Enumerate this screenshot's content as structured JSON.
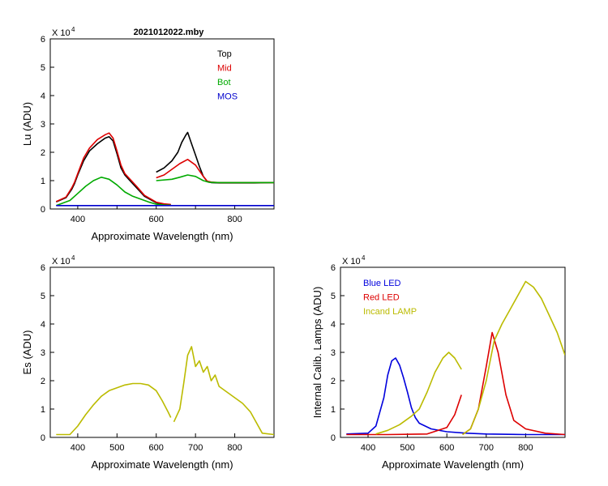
{
  "chart_data": [
    {
      "id": "lu",
      "type": "line",
      "title": "2021012022.mby",
      "xlabel": "Approximate Wavelength (nm)",
      "ylabel": "Lu (ADU)",
      "y_multiplier": "X 10",
      "y_exponent": "4",
      "xlim": [
        330,
        900
      ],
      "ylim": [
        0,
        6
      ],
      "xticks": [
        400,
        500,
        600,
        700,
        800
      ],
      "xtick_labels": [
        "400",
        "",
        "600",
        "",
        "800"
      ],
      "yticks": [
        0,
        1,
        2,
        3,
        4,
        5,
        6
      ],
      "legend_position": "top-right",
      "series": [
        {
          "name": "Top",
          "color": "#000000",
          "segments": [
            {
              "x": [
                345,
                370,
                385,
                392,
                400,
                415,
                430,
                450,
                470,
                480,
                490,
                500,
                510,
                520,
                530,
                550,
                570,
                600,
                620,
                637
              ],
              "y": [
                0.25,
                0.4,
                0.7,
                0.9,
                1.2,
                1.7,
                2.05,
                2.3,
                2.5,
                2.55,
                2.4,
                1.95,
                1.45,
                1.2,
                1.05,
                0.75,
                0.45,
                0.22,
                0.17,
                0.15
              ]
            },
            {
              "x": [
                600,
                620,
                640,
                655,
                665,
                675,
                680,
                690,
                700,
                710,
                720,
                730,
                740,
                760,
                800,
                850,
                900
              ],
              "y": [
                1.3,
                1.45,
                1.7,
                2.0,
                2.35,
                2.6,
                2.7,
                2.3,
                1.9,
                1.5,
                1.15,
                0.97,
                0.93,
                0.92,
                0.92,
                0.92,
                0.93
              ]
            }
          ]
        },
        {
          "name": "Mid",
          "color": "#dd0000",
          "segments": [
            {
              "x": [
                345,
                370,
                385,
                392,
                400,
                415,
                430,
                450,
                470,
                480,
                490,
                500,
                510,
                520,
                530,
                550,
                570,
                600,
                620,
                637
              ],
              "y": [
                0.26,
                0.42,
                0.75,
                0.95,
                1.25,
                1.8,
                2.15,
                2.45,
                2.62,
                2.68,
                2.5,
                2.05,
                1.55,
                1.25,
                1.1,
                0.8,
                0.48,
                0.24,
                0.18,
                0.16
              ]
            },
            {
              "x": [
                600,
                620,
                640,
                660,
                680,
                700,
                720,
                730,
                740,
                760,
                800,
                850,
                900
              ],
              "y": [
                1.1,
                1.2,
                1.4,
                1.6,
                1.75,
                1.55,
                1.15,
                0.98,
                0.95,
                0.93,
                0.93,
                0.93,
                0.93
              ]
            }
          ]
        },
        {
          "name": "Bot",
          "color": "#00aa00",
          "segments": [
            {
              "x": [
                345,
                380,
                400,
                420,
                440,
                460,
                480,
                500,
                520,
                540,
                560,
                580,
                600,
                620,
                637
              ],
              "y": [
                0.12,
                0.3,
                0.55,
                0.8,
                1.0,
                1.12,
                1.05,
                0.85,
                0.6,
                0.45,
                0.35,
                0.25,
                0.17,
                0.14,
                0.13
              ]
            },
            {
              "x": [
                600,
                640,
                660,
                680,
                700,
                720,
                735,
                760,
                800,
                850,
                900
              ],
              "y": [
                1.0,
                1.05,
                1.12,
                1.2,
                1.15,
                1.0,
                0.94,
                0.93,
                0.93,
                0.93,
                0.93
              ]
            }
          ]
        },
        {
          "name": "MOS",
          "color": "#0000cc",
          "segments": [
            {
              "x": [
                345,
                420,
                500,
                600,
                700,
                800,
                900
              ],
              "y": [
                0.12,
                0.12,
                0.12,
                0.12,
                0.12,
                0.12,
                0.12
              ]
            }
          ]
        }
      ]
    },
    {
      "id": "es",
      "type": "line",
      "title": "",
      "xlabel": "Approximate Wavelength (nm)",
      "ylabel": "Es  (ADU)",
      "y_multiplier": "X 10",
      "y_exponent": "4",
      "xlim": [
        330,
        900
      ],
      "ylim": [
        0,
        6
      ],
      "xticks": [
        400,
        500,
        600,
        700,
        800
      ],
      "xtick_labels": [
        "400",
        "500",
        "600",
        "700",
        "800"
      ],
      "yticks": [
        0,
        1,
        2,
        3,
        4,
        5,
        6
      ],
      "series": [
        {
          "name": "Es",
          "color": "#bbbb00",
          "segments": [
            {
              "x": [
                345,
                380,
                400,
                420,
                440,
                460,
                480,
                500,
                520,
                540,
                560,
                580,
                600,
                615,
                630,
                637
              ],
              "y": [
                0.1,
                0.1,
                0.4,
                0.8,
                1.15,
                1.45,
                1.65,
                1.75,
                1.85,
                1.9,
                1.9,
                1.85,
                1.65,
                1.3,
                0.9,
                0.7
              ]
            },
            {
              "x": [
                645,
                660,
                670,
                680,
                690,
                700,
                710,
                720,
                730,
                740,
                750,
                760,
                780,
                800,
                820,
                840,
                870,
                900
              ],
              "y": [
                0.55,
                1.0,
                1.9,
                2.9,
                3.2,
                2.5,
                2.7,
                2.3,
                2.5,
                2.0,
                2.2,
                1.8,
                1.6,
                1.4,
                1.2,
                0.9,
                0.15,
                0.1
              ]
            }
          ]
        }
      ]
    },
    {
      "id": "lamps",
      "type": "line",
      "title": "",
      "xlabel": "Approximate Wavelength (nm)",
      "ylabel": "Internal Calib. Lamps  (ADU)",
      "y_multiplier": "X 10",
      "y_exponent": "4",
      "xlim": [
        330,
        900
      ],
      "ylim": [
        0,
        6
      ],
      "xticks": [
        400,
        500,
        600,
        700,
        800
      ],
      "xtick_labels": [
        "400",
        "500",
        "600",
        "700",
        "800"
      ],
      "yticks": [
        0,
        1,
        2,
        3,
        4,
        5,
        6
      ],
      "legend_position": "top-left",
      "series": [
        {
          "name": "Blue LED",
          "color": "#0000dd",
          "segments": [
            {
              "x": [
                345,
                400,
                420,
                440,
                450,
                460,
                470,
                480,
                490,
                500,
                510,
                520,
                530,
                560,
                600,
                650,
                700,
                800,
                900
              ],
              "y": [
                0.12,
                0.15,
                0.4,
                1.4,
                2.2,
                2.7,
                2.8,
                2.55,
                2.1,
                1.6,
                1.05,
                0.7,
                0.5,
                0.3,
                0.2,
                0.15,
                0.12,
                0.1,
                0.1
              ]
            }
          ]
        },
        {
          "name": "Red LED",
          "color": "#dd0000",
          "segments": [
            {
              "x": [
                345,
                450,
                550,
                600,
                620,
                637
              ],
              "y": [
                0.1,
                0.1,
                0.12,
                0.35,
                0.8,
                1.5
              ]
            },
            {
              "x": [
                640,
                660,
                680,
                700,
                715,
                730,
                750,
                770,
                800,
                850,
                900
              ],
              "y": [
                0.1,
                0.3,
                1.0,
                2.5,
                3.7,
                3.0,
                1.5,
                0.6,
                0.3,
                0.15,
                0.1
              ]
            }
          ]
        },
        {
          "name": "Incand LAMP",
          "color": "#bbbb00",
          "segments": [
            {
              "x": [
                420,
                450,
                480,
                510,
                530,
                550,
                570,
                590,
                605,
                620,
                637
              ],
              "y": [
                0.12,
                0.25,
                0.45,
                0.75,
                1.0,
                1.6,
                2.3,
                2.8,
                3.0,
                2.8,
                2.4
              ]
            },
            {
              "x": [
                640,
                660,
                680,
                700,
                720,
                740,
                760,
                780,
                800,
                820,
                840,
                860,
                880,
                900
              ],
              "y": [
                0.1,
                0.3,
                1.0,
                2.0,
                3.4,
                4.0,
                4.5,
                5.0,
                5.5,
                5.3,
                4.9,
                4.3,
                3.7,
                2.9
              ]
            }
          ]
        }
      ]
    }
  ]
}
